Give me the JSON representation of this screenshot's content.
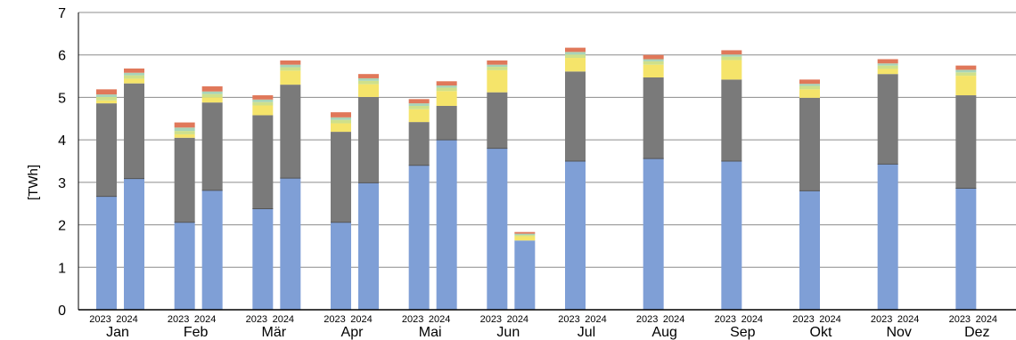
{
  "chart_data": {
    "type": "bar",
    "stacked": true,
    "ylabel": "[TWh]",
    "ylim": [
      0,
      7
    ],
    "yticks": [
      0,
      1,
      2,
      3,
      4,
      5,
      6,
      7
    ],
    "grid": true,
    "categories": [
      "Jan",
      "Feb",
      "Mär",
      "Apr",
      "Mai",
      "Jun",
      "Jul",
      "Aug",
      "Sep",
      "Okt",
      "Nov",
      "Dez"
    ],
    "years": [
      "2023",
      "2024"
    ],
    "segment_colors": [
      "#7f9fd6",
      "#7a7a7a",
      "#f5e46a",
      "#cfe08a",
      "#a8d4b8",
      "#e0785a"
    ],
    "bars": [
      {
        "month": "Jan",
        "year": "2023",
        "segments": [
          2.67,
          2.19,
          0.07,
          0.08,
          0.06,
          0.12
        ]
      },
      {
        "month": "Jan",
        "year": "2024",
        "segments": [
          3.09,
          2.24,
          0.11,
          0.08,
          0.06,
          0.1
        ]
      },
      {
        "month": "Feb",
        "year": "2023",
        "segments": [
          2.06,
          1.99,
          0.08,
          0.08,
          0.08,
          0.12
        ]
      },
      {
        "month": "Feb",
        "year": "2024",
        "segments": [
          2.81,
          2.07,
          0.12,
          0.08,
          0.06,
          0.12
        ]
      },
      {
        "month": "Mär",
        "year": "2023",
        "segments": [
          2.38,
          2.2,
          0.23,
          0.08,
          0.06,
          0.1
        ]
      },
      {
        "month": "Mär",
        "year": "2024",
        "segments": [
          3.1,
          2.2,
          0.33,
          0.08,
          0.06,
          0.1
        ]
      },
      {
        "month": "Apr",
        "year": "2023",
        "segments": [
          2.06,
          2.13,
          0.2,
          0.08,
          0.06,
          0.12
        ]
      },
      {
        "month": "Apr",
        "year": "2024",
        "segments": [
          2.99,
          2.02,
          0.3,
          0.08,
          0.06,
          0.1
        ]
      },
      {
        "month": "Mai",
        "year": "2023",
        "segments": [
          3.4,
          1.02,
          0.3,
          0.08,
          0.06,
          0.1
        ]
      },
      {
        "month": "Mai",
        "year": "2024",
        "segments": [
          4.0,
          0.8,
          0.35,
          0.08,
          0.05,
          0.1
        ]
      },
      {
        "month": "Jun",
        "year": "2023",
        "segments": [
          3.8,
          1.32,
          0.52,
          0.08,
          0.05,
          0.1
        ]
      },
      {
        "month": "Jun",
        "year": "2024",
        "segments": [
          1.63,
          0.0,
          0.1,
          0.03,
          0.03,
          0.04
        ]
      },
      {
        "month": "Jul",
        "year": "2023",
        "segments": [
          3.5,
          2.11,
          0.32,
          0.08,
          0.06,
          0.1
        ]
      },
      {
        "month": "Aug",
        "year": "2023",
        "segments": [
          3.56,
          1.91,
          0.3,
          0.08,
          0.05,
          0.1
        ]
      },
      {
        "month": "Sep",
        "year": "2023",
        "segments": [
          3.5,
          1.92,
          0.46,
          0.08,
          0.05,
          0.1
        ]
      },
      {
        "month": "Okt",
        "year": "2023",
        "segments": [
          2.8,
          2.19,
          0.2,
          0.08,
          0.05,
          0.1
        ]
      },
      {
        "month": "Nov",
        "year": "2023",
        "segments": [
          3.43,
          2.12,
          0.12,
          0.08,
          0.05,
          0.1
        ]
      },
      {
        "month": "Dez",
        "year": "2023",
        "segments": [
          2.86,
          2.19,
          0.46,
          0.08,
          0.06,
          0.1
        ]
      }
    ]
  }
}
